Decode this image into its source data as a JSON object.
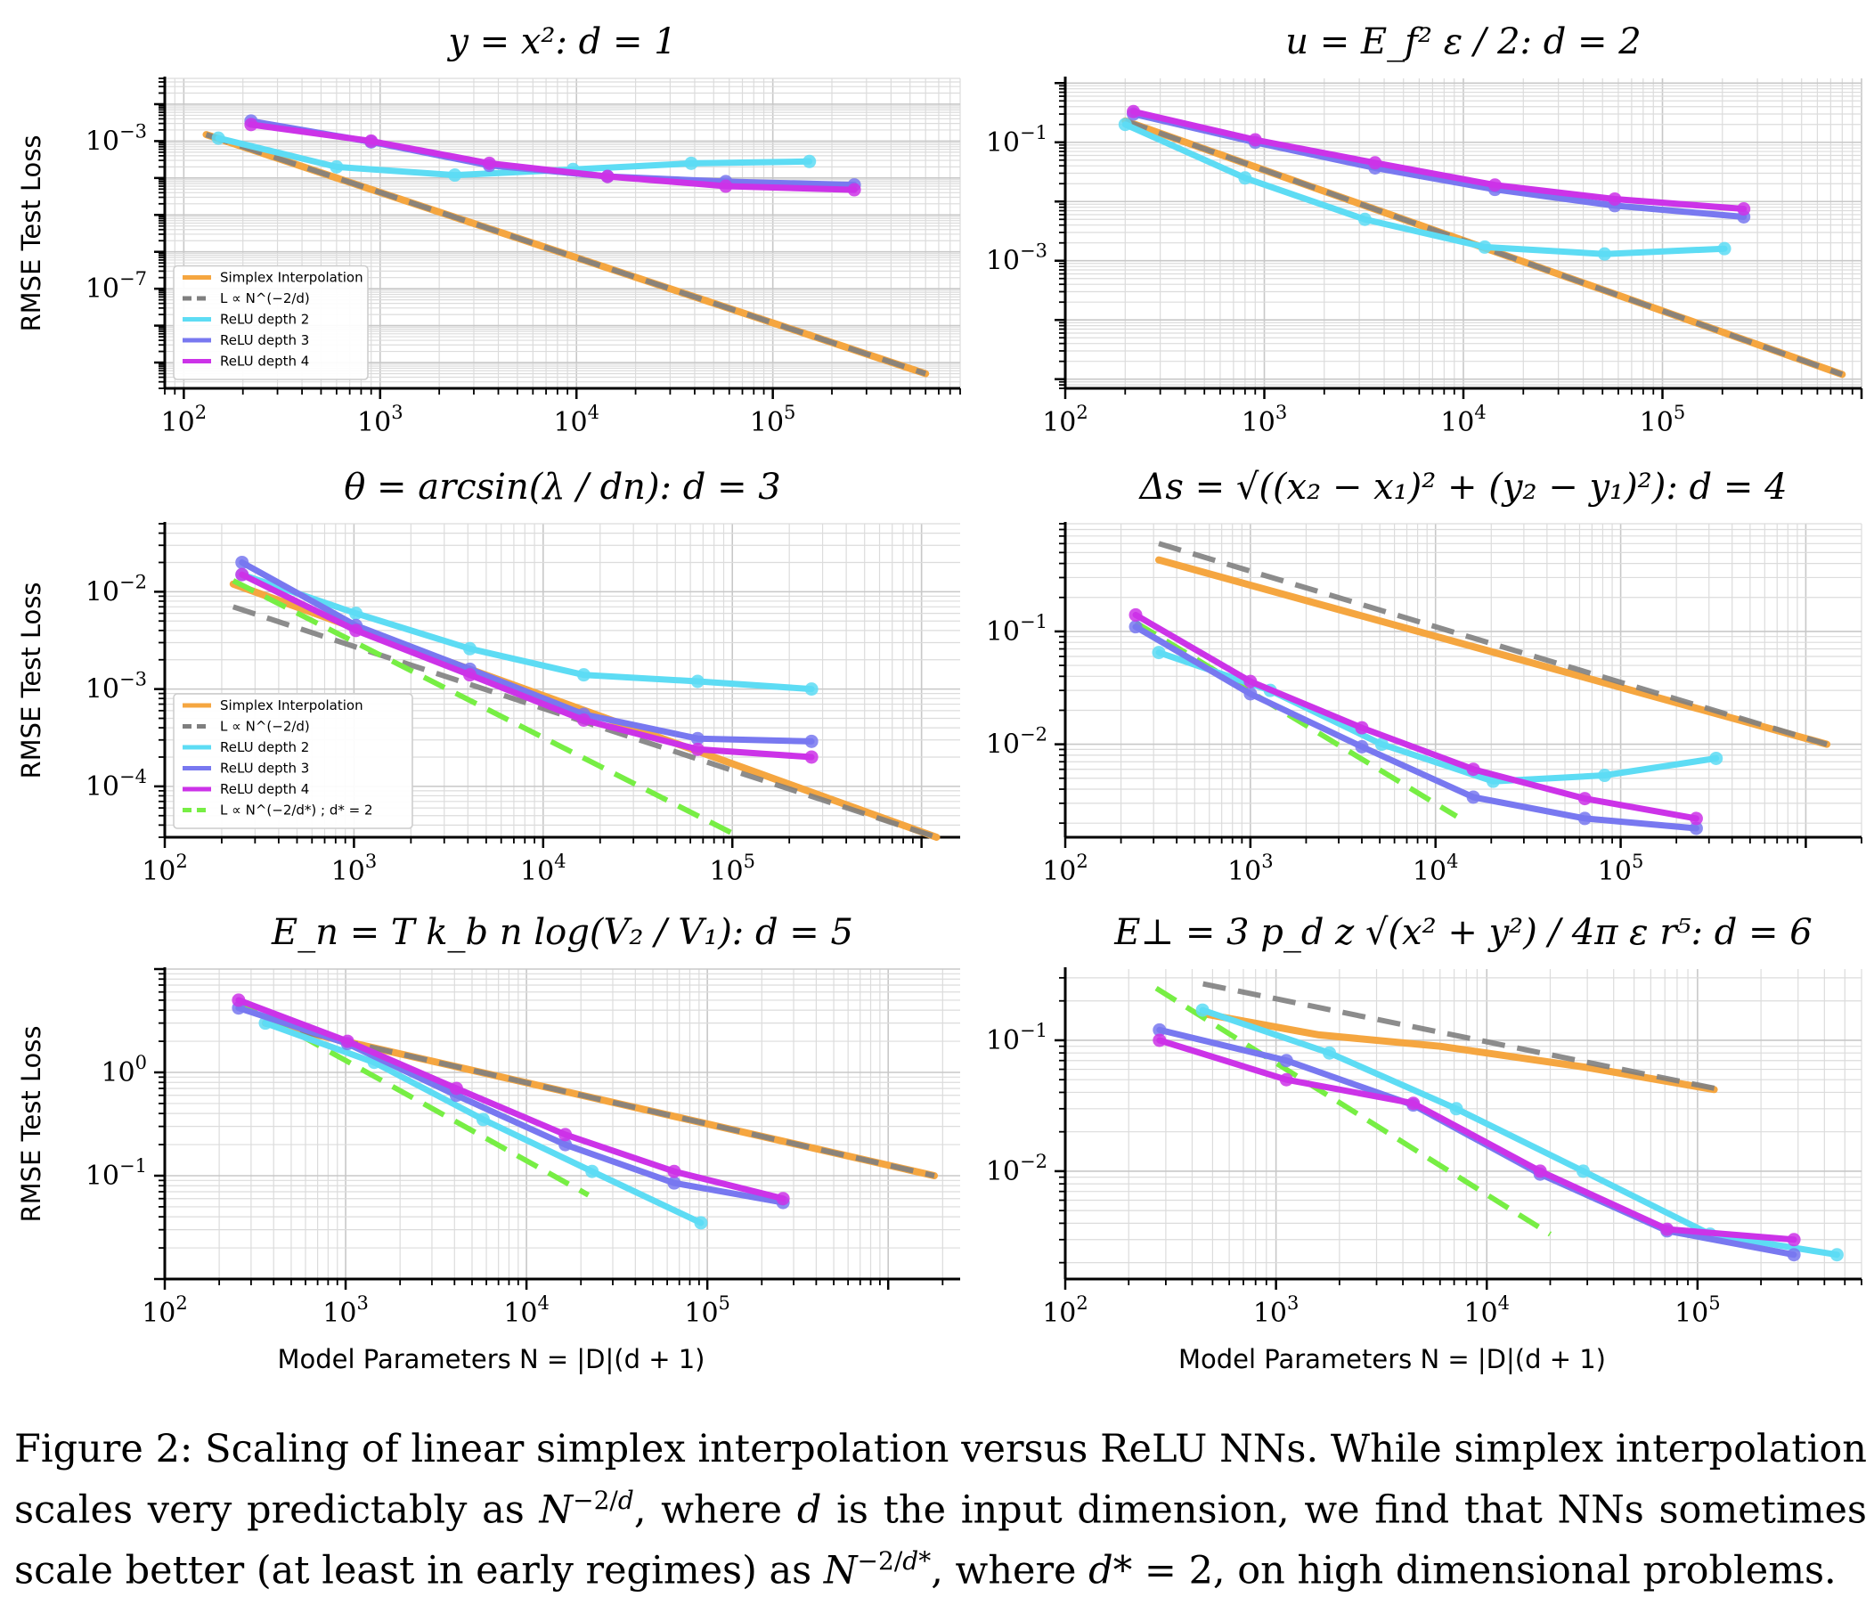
{
  "figure": {
    "caption_parts": [
      {
        "t": "Figure 2: Scaling of linear simplex interpolation versus ReLU NNs. While simplex interpolation scales very predictably as "
      },
      {
        "t": "N",
        "i": true
      },
      {
        "t": "−2/",
        "sup": true
      },
      {
        "t": "d",
        "sup": true,
        "i": true
      },
      {
        "t": ", where "
      },
      {
        "t": "d",
        "i": true
      },
      {
        "t": " is the input dimension, we find that NNs sometimes scale better (at least in early regimes) as "
      },
      {
        "t": "N",
        "i": true
      },
      {
        "t": "−2/",
        "sup": true
      },
      {
        "t": "d*",
        "sup": true,
        "i": true
      },
      {
        "t": ", where "
      },
      {
        "t": "d*",
        "i": true
      },
      {
        "t": " = 2, on high dimensional problems."
      }
    ]
  },
  "colors": {
    "simplex": "#f5a640",
    "ref": "#7f7f7f",
    "relu2": "#5ddcf4",
    "relu3": "#7878f0",
    "relu4": "#cc33e8",
    "dstar": "#77ee44"
  },
  "chart_data": [
    {
      "type": "line",
      "log_x": true,
      "log_y": true,
      "title": "y = x²:  d = 1",
      "ylabel": "RMSE Test Loss",
      "xlabel": "",
      "xlim": [
        80,
        900000
      ],
      "ylim": [
        2e-10,
        0.05
      ],
      "xticks": [
        {
          "v": 100,
          "base": "10",
          "exp": "2"
        },
        {
          "v": 1000,
          "base": "10",
          "exp": "3"
        },
        {
          "v": 10000,
          "base": "10",
          "exp": "4"
        },
        {
          "v": 100000,
          "base": "10",
          "exp": "5"
        }
      ],
      "yticks": [
        {
          "v": 0.001,
          "base": "10",
          "exp": "−3"
        },
        {
          "v": 1e-07,
          "base": "10",
          "exp": "−7"
        }
      ],
      "legend": {
        "placement": "lower-left",
        "entries": [
          {
            "key": "simplex",
            "label": "Simplex Interpolation",
            "style": "solid"
          },
          {
            "key": "ref",
            "label": "L ∝ N^(−2/d)",
            "style": "dashed"
          },
          {
            "key": "relu2",
            "label": "ReLU depth 2",
            "style": "solid"
          },
          {
            "key": "relu3",
            "label": "ReLU depth 3",
            "style": "solid"
          },
          {
            "key": "relu4",
            "label": "ReLU depth 4",
            "style": "solid"
          }
        ]
      },
      "series": [
        {
          "key": "simplex",
          "name": "Simplex Interpolation",
          "x": [
            130,
            600000
          ],
          "y": [
            0.0015,
            5e-10
          ]
        },
        {
          "key": "ref",
          "name": "L ∝ N^(−2/d)",
          "dashed": true,
          "x": [
            130,
            600000
          ],
          "y": [
            0.0015,
            5e-10
          ]
        },
        {
          "key": "relu2",
          "name": "ReLU depth 2",
          "x": [
            150,
            600,
            2400,
            9600,
            38400,
            153600
          ],
          "y": [
            0.0012,
            0.0002,
            0.00012,
            0.00017,
            0.00025,
            0.00028
          ],
          "markers": true
        },
        {
          "key": "relu3",
          "name": "ReLU depth 3",
          "x": [
            220,
            900,
            3600,
            14400,
            57600,
            260000
          ],
          "y": [
            0.0035,
            0.00095,
            0.00022,
            0.00011,
            8e-05,
            6.5e-05
          ],
          "markers": true
        },
        {
          "key": "relu4",
          "name": "ReLU depth 4",
          "x": [
            220,
            900,
            3600,
            14400,
            57600,
            260000
          ],
          "y": [
            0.0028,
            0.001,
            0.00025,
            0.00011,
            6e-05,
            4.8e-05
          ],
          "markers": true
        }
      ]
    },
    {
      "type": "line",
      "log_x": true,
      "log_y": true,
      "title": "u = E_f² ε / 2:  d = 2",
      "ylabel": "",
      "xlabel": "",
      "xlim": [
        100,
        1000000
      ],
      "ylim": [
        7e-06,
        1.2
      ],
      "xticks": [
        {
          "v": 100,
          "base": "10",
          "exp": "2"
        },
        {
          "v": 1000,
          "base": "10",
          "exp": "3"
        },
        {
          "v": 10000,
          "base": "10",
          "exp": "4"
        },
        {
          "v": 100000,
          "base": "10",
          "exp": "5"
        }
      ],
      "yticks": [
        {
          "v": 0.1,
          "base": "10",
          "exp": "−1"
        },
        {
          "v": 0.001,
          "base": "10",
          "exp": "−3"
        }
      ],
      "series": [
        {
          "key": "simplex",
          "name": "Simplex Interpolation",
          "x": [
            200,
            800000
          ],
          "y": [
            0.23,
            1.2e-05
          ]
        },
        {
          "key": "ref",
          "dashed": true,
          "x": [
            200,
            800000
          ],
          "y": [
            0.23,
            1.2e-05
          ]
        },
        {
          "key": "relu2",
          "x": [
            200,
            800,
            3200,
            12800,
            51200,
            204800
          ],
          "y": [
            0.2,
            0.025,
            0.005,
            0.0017,
            0.0013,
            0.0016
          ],
          "markers": true
        },
        {
          "key": "relu3",
          "x": [
            220,
            900,
            3600,
            14400,
            57600,
            256000
          ],
          "y": [
            0.3,
            0.1,
            0.037,
            0.016,
            0.0085,
            0.0055
          ],
          "markers": true
        },
        {
          "key": "relu4",
          "x": [
            220,
            900,
            3600,
            14400,
            57600,
            256000
          ],
          "y": [
            0.33,
            0.11,
            0.045,
            0.019,
            0.011,
            0.0075
          ],
          "markers": true
        }
      ]
    },
    {
      "type": "line",
      "log_x": true,
      "log_y": true,
      "title": "θ = arcsin(λ / dn):  d = 3",
      "ylabel": "RMSE Test Loss",
      "xlabel": "",
      "xlim": [
        100,
        1600000
      ],
      "ylim": [
        3e-05,
        0.05
      ],
      "xticks": [
        {
          "v": 100,
          "base": "10",
          "exp": "2"
        },
        {
          "v": 1000,
          "base": "10",
          "exp": "3"
        },
        {
          "v": 10000,
          "base": "10",
          "exp": "4"
        },
        {
          "v": 100000,
          "base": "10",
          "exp": "5"
        }
      ],
      "yticks": [
        {
          "v": 0.01,
          "base": "10",
          "exp": "−2"
        },
        {
          "v": 0.001,
          "base": "10",
          "exp": "−3"
        },
        {
          "v": 0.0001,
          "base": "10",
          "exp": "−4"
        }
      ],
      "legend": {
        "placement": "lower-left",
        "entries": [
          {
            "key": "simplex",
            "label": "Simplex Interpolation",
            "style": "solid"
          },
          {
            "key": "ref",
            "label": "L ∝ N^(−2/d)",
            "style": "dashed"
          },
          {
            "key": "relu2",
            "label": "ReLU depth 2",
            "style": "solid"
          },
          {
            "key": "relu3",
            "label": "ReLU depth 3",
            "style": "solid"
          },
          {
            "key": "relu4",
            "label": "ReLU depth 4",
            "style": "solid"
          },
          {
            "key": "dstar",
            "label": "L ∝ N^(−2/d*) ;  d* = 2",
            "style": "dashed"
          }
        ]
      },
      "series": [
        {
          "key": "simplex",
          "x": [
            230,
            1200000
          ],
          "y": [
            0.012,
            3e-05
          ]
        },
        {
          "key": "ref",
          "dashed": true,
          "x": [
            230,
            1200000
          ],
          "y": [
            0.007,
            3e-05
          ]
        },
        {
          "key": "dstar",
          "dashed": true,
          "x": [
            230,
            110000
          ],
          "y": [
            0.013,
            3e-05
          ]
        },
        {
          "key": "relu2",
          "x": [
            256,
            1024,
            4096,
            16384,
            65536,
            262144
          ],
          "y": [
            0.015,
            0.006,
            0.0026,
            0.0014,
            0.0012,
            0.001
          ],
          "markers": true
        },
        {
          "key": "relu3",
          "x": [
            256,
            1024,
            4096,
            16384,
            65536,
            262144
          ],
          "y": [
            0.02,
            0.0045,
            0.0016,
            0.00055,
            0.00031,
            0.00029
          ],
          "markers": true
        },
        {
          "key": "relu4",
          "x": [
            256,
            1024,
            4096,
            16384,
            65536,
            262144
          ],
          "y": [
            0.015,
            0.004,
            0.0014,
            0.00048,
            0.00024,
            0.0002
          ],
          "markers": true
        }
      ]
    },
    {
      "type": "line",
      "log_x": true,
      "log_y": true,
      "title": "Δs = √((x₂ − x₁)² + (y₂ − y₁)²):  d = 4",
      "ylabel": "",
      "xlabel": "",
      "xlim": [
        100,
        2000000
      ],
      "ylim": [
        0.0015,
        0.9
      ],
      "xticks": [
        {
          "v": 100,
          "base": "10",
          "exp": "2"
        },
        {
          "v": 1000,
          "base": "10",
          "exp": "3"
        },
        {
          "v": 10000,
          "base": "10",
          "exp": "4"
        },
        {
          "v": 100000,
          "base": "10",
          "exp": "5"
        }
      ],
      "yticks": [
        {
          "v": 0.1,
          "base": "10",
          "exp": "−1"
        },
        {
          "v": 0.01,
          "base": "10",
          "exp": "−2"
        }
      ],
      "series": [
        {
          "key": "simplex",
          "x": [
            320,
            1300000
          ],
          "y": [
            0.43,
            0.01
          ]
        },
        {
          "key": "ref",
          "dashed": true,
          "x": [
            320,
            1300000
          ],
          "y": [
            0.6,
            0.01
          ]
        },
        {
          "key": "dstar",
          "dashed": true,
          "x": [
            240,
            13000
          ],
          "y": [
            0.12,
            0.0023
          ]
        },
        {
          "key": "relu2",
          "x": [
            320,
            1280,
            5120,
            20480,
            81920,
            327680
          ],
          "y": [
            0.065,
            0.03,
            0.01,
            0.0047,
            0.0053,
            0.0075
          ],
          "markers": true
        },
        {
          "key": "relu3",
          "x": [
            240,
            1000,
            4000,
            16000,
            64000,
            256000
          ],
          "y": [
            0.11,
            0.028,
            0.0095,
            0.0034,
            0.0022,
            0.0018
          ],
          "markers": true
        },
        {
          "key": "relu4",
          "x": [
            240,
            1000,
            4000,
            16000,
            64000,
            256000
          ],
          "y": [
            0.14,
            0.036,
            0.014,
            0.006,
            0.0033,
            0.0022
          ],
          "markers": true
        }
      ]
    },
    {
      "type": "line",
      "log_x": true,
      "log_y": true,
      "title": "E_n = T k_b n log(V₂ / V₁):  d = 5",
      "ylabel": "RMSE Test Loss",
      "xlabel": "Model Parameters  N = |D|(d + 1)",
      "xlim": [
        100,
        2500000
      ],
      "ylim": [
        0.01,
        10
      ],
      "xticks": [
        {
          "v": 100,
          "base": "10",
          "exp": "2"
        },
        {
          "v": 1000,
          "base": "10",
          "exp": "3"
        },
        {
          "v": 10000,
          "base": "10",
          "exp": "4"
        },
        {
          "v": 100000,
          "base": "10",
          "exp": "5"
        }
      ],
      "yticks": [
        {
          "v": 1,
          "base": "10",
          "exp": "0"
        },
        {
          "v": 0.1,
          "base": "10",
          "exp": "−1"
        }
      ],
      "series": [
        {
          "key": "simplex",
          "x": [
            360,
            1800000
          ],
          "y": [
            3.0,
            0.1
          ]
        },
        {
          "key": "ref",
          "dashed": true,
          "x": [
            360,
            1800000
          ],
          "y": [
            3.0,
            0.1
          ]
        },
        {
          "key": "dstar",
          "dashed": true,
          "x": [
            250,
            22000
          ],
          "y": [
            5.0,
            0.065
          ]
        },
        {
          "key": "relu2",
          "x": [
            360,
            1440,
            5760,
            23040,
            92160
          ],
          "y": [
            3.0,
            1.25,
            0.35,
            0.11,
            0.035
          ],
          "markers": true
        },
        {
          "key": "relu3",
          "x": [
            256,
            1024,
            4096,
            16384,
            65536,
            262144
          ],
          "y": [
            4.2,
            1.9,
            0.6,
            0.2,
            0.085,
            0.055
          ],
          "markers": true
        },
        {
          "key": "relu4",
          "x": [
            256,
            1024,
            4096,
            16384,
            65536,
            262144
          ],
          "y": [
            5.0,
            2.0,
            0.7,
            0.25,
            0.11,
            0.06
          ],
          "markers": true
        }
      ]
    },
    {
      "type": "line",
      "log_x": true,
      "log_y": true,
      "title": "E⊥ = 3 p_d z √(x² + y²) / 4π ε r⁵:  d = 6",
      "ylabel": "",
      "xlabel": "Model Parameters  N = |D|(d + 1)",
      "xlim": [
        100,
        600000
      ],
      "ylim": [
        0.0015,
        0.35
      ],
      "xticks": [
        {
          "v": 100,
          "base": "10",
          "exp": "2"
        },
        {
          "v": 1000,
          "base": "10",
          "exp": "3"
        },
        {
          "v": 10000,
          "base": "10",
          "exp": "4"
        },
        {
          "v": 100000,
          "base": "10",
          "exp": "5"
        }
      ],
      "yticks": [
        {
          "v": 0.1,
          "base": "10",
          "exp": "−1"
        },
        {
          "v": 0.01,
          "base": "10",
          "exp": "−2"
        }
      ],
      "series": [
        {
          "key": "simplex",
          "x": [
            450,
            1600,
            6000,
            30000,
            120000
          ],
          "y": [
            0.16,
            0.11,
            0.09,
            0.062,
            0.042
          ]
        },
        {
          "key": "ref",
          "dashed": true,
          "x": [
            450,
            120000
          ],
          "y": [
            0.27,
            0.043
          ]
        },
        {
          "key": "dstar",
          "dashed": true,
          "x": [
            270,
            20000
          ],
          "y": [
            0.25,
            0.0033
          ]
        },
        {
          "key": "relu2",
          "x": [
            448,
            1792,
            7168,
            28672,
            114688,
            458752
          ],
          "y": [
            0.17,
            0.08,
            0.03,
            0.01,
            0.0033,
            0.0023
          ],
          "markers": true
        },
        {
          "key": "relu3",
          "x": [
            280,
            1120,
            4480,
            17920,
            71680,
            286720
          ],
          "y": [
            0.12,
            0.07,
            0.032,
            0.0095,
            0.0035,
            0.0023
          ],
          "markers": true
        },
        {
          "key": "relu4",
          "x": [
            280,
            1120,
            4480,
            17920,
            71680,
            286720
          ],
          "y": [
            0.1,
            0.05,
            0.033,
            0.01,
            0.0036,
            0.003
          ],
          "markers": true
        }
      ]
    }
  ]
}
